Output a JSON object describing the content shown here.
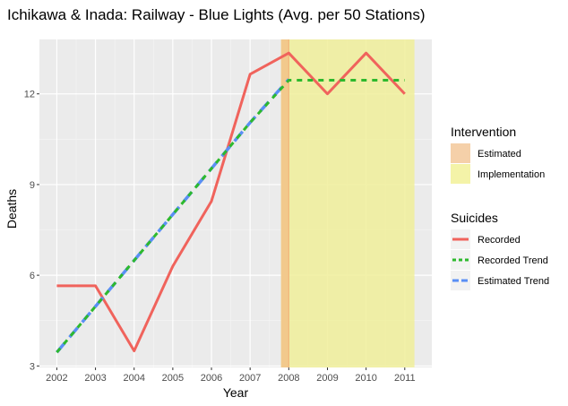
{
  "chart_data": {
    "type": "line",
    "title": "Ichikawa & Inada: Railway - Blue Lights (Avg. per 50 Stations)",
    "xlabel": "Year",
    "ylabel": "Deaths",
    "x": [
      2002,
      2003,
      2004,
      2005,
      2006,
      2007,
      2008,
      2009,
      2010,
      2011
    ],
    "xlim": [
      2001.55,
      2011.7
    ],
    "ylim": [
      2.95,
      13.8
    ],
    "x_ticks": [
      "2002",
      "2003",
      "2004",
      "2005",
      "2006",
      "2007",
      "2008",
      "2009",
      "2010",
      "2011"
    ],
    "y_ticks": [
      3,
      6,
      9,
      12
    ],
    "y_tick_labels": [
      "3",
      "6",
      "9",
      "12"
    ],
    "grid": true,
    "series": [
      {
        "name": "Recorded",
        "color": "#f0635c",
        "style": "solid",
        "values": [
          5.65,
          5.65,
          3.5,
          6.3,
          8.45,
          12.65,
          13.35,
          12.0,
          13.35,
          12.0
        ]
      },
      {
        "name": "Recorded Trend",
        "color": "#2db92d",
        "style": "dotted",
        "values": [
          3.45,
          4.97,
          6.49,
          8.01,
          9.53,
          11.05,
          12.45,
          12.45,
          12.45,
          12.45
        ]
      },
      {
        "name": "Estimated Trend",
        "color": "#5a8ff5",
        "style": "dashed",
        "values": [
          3.45,
          4.97,
          6.49,
          8.01,
          9.53,
          11.05,
          12.48,
          null,
          null,
          null
        ]
      }
    ],
    "regions": [
      {
        "name": "Implementation",
        "from": 2007.8,
        "to": 2011.25,
        "color": "#f0ee9a"
      },
      {
        "name": "Estimated",
        "from": 2007.8,
        "to": 2008.0,
        "color": "#f2c48a"
      }
    ],
    "legend": {
      "placement": "right",
      "groups": [
        {
          "title": "Intervention",
          "items": [
            {
              "label": "Estimated",
              "kind": "fill",
              "color": "#f5d0a9"
            },
            {
              "label": "Implementation",
              "kind": "fill",
              "color": "#f4f3a8"
            }
          ]
        },
        {
          "title": "Suicides",
          "items": [
            {
              "label": "Recorded",
              "kind": "solid",
              "color": "#f0635c"
            },
            {
              "label": "Recorded Trend",
              "kind": "dotted",
              "color": "#2db92d"
            },
            {
              "label": "Estimated Trend",
              "kind": "dashed",
              "color": "#5a8ff5"
            }
          ]
        }
      ]
    }
  }
}
